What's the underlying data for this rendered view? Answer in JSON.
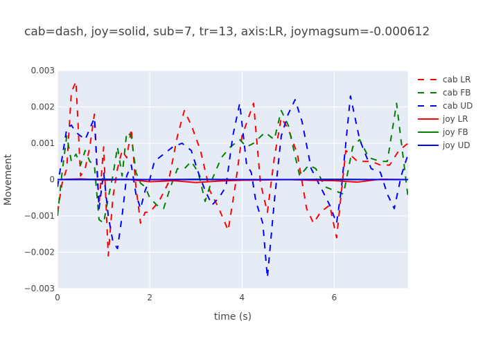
{
  "chart_data": {
    "type": "line",
    "title": "cab=dash, joy=solid, sub=7, tr=13, axis:LR, joymagsum=-0.000612",
    "xlabel": "time (s)",
    "ylabel": "Movement",
    "xlim": [
      0,
      7.6
    ],
    "ylim": [
      -0.003,
      0.003
    ],
    "x_ticks": [
      0,
      2,
      4,
      6
    ],
    "x_tick_labels": [
      "0",
      "2",
      "4",
      "6"
    ],
    "y_ticks": [
      -0.003,
      -0.002,
      -0.001,
      0,
      0.001,
      0.002,
      0.003
    ],
    "y_tick_labels": [
      "−0.003",
      "−0.002",
      "−0.001",
      "0",
      "0.001",
      "0.002",
      "0.003"
    ],
    "grid": true,
    "legend_position": "right",
    "series": [
      {
        "name": "cab LR",
        "color": "#ff0000",
        "dash": "dash",
        "x": [
          0,
          0.1,
          0.2,
          0.3,
          0.4,
          0.5,
          0.6,
          0.7,
          0.8,
          0.9,
          1.0,
          1.1,
          1.2,
          1.3,
          1.4,
          1.5,
          1.6,
          1.7,
          1.8,
          1.9,
          2.0,
          2.2,
          2.4,
          2.6,
          2.75,
          2.9,
          3.1,
          3.3,
          3.5,
          3.7,
          3.85,
          4.0,
          4.25,
          4.4,
          4.55,
          4.7,
          4.85,
          5.0,
          5.2,
          5.4,
          5.55,
          5.7,
          5.9,
          6.05,
          6.25,
          6.5,
          6.8,
          7.0,
          7.2,
          7.4,
          7.6
        ],
        "y": [
          -0.0009,
          -0.0001,
          0.0003,
          0.0024,
          0.0027,
          0.0001,
          0.0003,
          0.0009,
          0.0018,
          -0.0007,
          0.0009,
          -0.0021,
          -0.0005,
          0.0003,
          0.0008,
          0.0006,
          0.0014,
          -0.0002,
          -0.0012,
          -0.0009,
          -0.0009,
          -0.0006,
          -0.0001,
          0.0012,
          0.0019,
          0.0015,
          0.0008,
          -0.0003,
          -0.0008,
          -0.0014,
          -0.0002,
          0.0012,
          0.0021,
          -0.0001,
          -0.0009,
          0.0006,
          0.0017,
          0.0014,
          0.0007,
          -0.0008,
          -0.0012,
          -0.0009,
          -0.0007,
          -0.0016,
          0.0008,
          0.0005,
          0.0005,
          0.0004,
          0.0004,
          0.0008,
          0.001
        ]
      },
      {
        "name": "cab FB",
        "color": "#008000",
        "dash": "dash",
        "x": [
          0,
          0.1,
          0.2,
          0.3,
          0.4,
          0.5,
          0.6,
          0.7,
          0.8,
          0.9,
          1.0,
          1.1,
          1.2,
          1.3,
          1.4,
          1.5,
          1.6,
          1.7,
          1.8,
          1.9,
          2.0,
          2.15,
          2.3,
          2.45,
          2.6,
          2.75,
          2.9,
          3.05,
          3.2,
          3.35,
          3.55,
          3.75,
          3.95,
          4.1,
          4.25,
          4.5,
          4.7,
          4.85,
          5.0,
          5.25,
          5.45,
          5.6,
          5.8,
          6.0,
          6.2,
          6.4,
          6.55,
          6.75,
          7.0,
          7.15,
          7.35,
          7.6
        ],
        "y": [
          -0.001,
          0.0002,
          0.0012,
          0.0005,
          0.0007,
          0.0004,
          0.0008,
          0.0005,
          0.0004,
          -0.0011,
          -0.0012,
          -0.0005,
          0.0001,
          0.0009,
          0.0001,
          0.0013,
          0.0012,
          0.0002,
          -0.0001,
          -0.0002,
          -0.0005,
          -0.0007,
          -0.0008,
          -0.0002,
          0.0003,
          0.0003,
          0.0005,
          0.0002,
          -0.0006,
          0.0,
          0.0006,
          0.0009,
          0.0011,
          0.0009,
          0.001,
          0.0013,
          0.0011,
          0.0019,
          0.0015,
          0.0001,
          0.0004,
          0.0003,
          -0.0002,
          -0.0003,
          -0.0004,
          0.0009,
          0.0011,
          0.0006,
          0.0005,
          0.0005,
          0.0021,
          -0.0005
        ]
      },
      {
        "name": "cab UD",
        "color": "#0000ff",
        "dash": "dash",
        "x": [
          0,
          0.1,
          0.2,
          0.3,
          0.4,
          0.5,
          0.6,
          0.7,
          0.8,
          0.9,
          1.0,
          1.1,
          1.2,
          1.3,
          1.4,
          1.5,
          1.6,
          1.7,
          1.8,
          1.9,
          2.0,
          2.1,
          2.3,
          2.5,
          2.7,
          2.9,
          3.05,
          3.2,
          3.35,
          3.5,
          3.65,
          3.8,
          3.95,
          4.1,
          4.2,
          4.3,
          4.45,
          4.55,
          4.7,
          4.85,
          5.0,
          5.15,
          5.3,
          5.5,
          5.7,
          5.9,
          6.05,
          6.15,
          6.35,
          6.55,
          6.8,
          7.0,
          7.15,
          7.3,
          7.45,
          7.6
        ],
        "y": [
          -0.0002,
          0.0006,
          0.0014,
          0.0015,
          0.0013,
          0.0012,
          0.0011,
          0.0014,
          0.0017,
          -0.0008,
          0.0002,
          -0.001,
          -0.0017,
          -0.0019,
          -0.001,
          0.0001,
          0.0004,
          -0.0004,
          -0.0008,
          -0.0003,
          0.0,
          0.0005,
          0.0007,
          0.0009,
          0.001,
          0.0008,
          0.0002,
          -0.0003,
          -0.0007,
          -0.0005,
          -0.0002,
          0.0012,
          0.0021,
          0.0004,
          0.0002,
          -0.0006,
          -0.0012,
          -0.0027,
          -0.0006,
          0.0012,
          0.0018,
          0.0022,
          0.0016,
          0.0003,
          -0.0002,
          -0.0007,
          -0.0012,
          -0.0003,
          0.0023,
          0.0011,
          0.0003,
          0.0002,
          -0.0004,
          -0.0008,
          0.0001,
          0.0007
        ]
      },
      {
        "name": "joy LR",
        "color": "#ff0000",
        "dash": "solid",
        "x": [
          0,
          0.5,
          1.0,
          1.5,
          2.0,
          2.5,
          3.0,
          3.5,
          4.0,
          4.5,
          5.0,
          5.5,
          6.0,
          6.5,
          7.0,
          7.6
        ],
        "y": [
          0.0,
          2e-05,
          -2e-05,
          1e-05,
          -6e-05,
          -3e-05,
          -8e-05,
          -4e-05,
          -2e-05,
          -1e-05,
          0.0,
          -2e-05,
          -3e-05,
          -7e-05,
          1e-05,
          0.0
        ]
      },
      {
        "name": "joy FB",
        "color": "#008000",
        "dash": "solid",
        "x": [
          0,
          1.0,
          2.0,
          3.0,
          4.0,
          5.0,
          6.0,
          7.0,
          7.6
        ],
        "y": [
          0.0,
          1e-05,
          0.0,
          1e-05,
          0.0,
          0.0,
          1e-05,
          0.0,
          0.0
        ]
      },
      {
        "name": "joy UD",
        "color": "#0000ff",
        "dash": "solid",
        "x": [
          0,
          1.0,
          2.0,
          3.0,
          4.0,
          5.0,
          6.0,
          7.0,
          7.6
        ],
        "y": [
          0.0,
          0.0,
          0.0,
          0.0,
          0.0,
          0.0,
          0.0,
          0.0,
          0.0
        ]
      }
    ]
  }
}
